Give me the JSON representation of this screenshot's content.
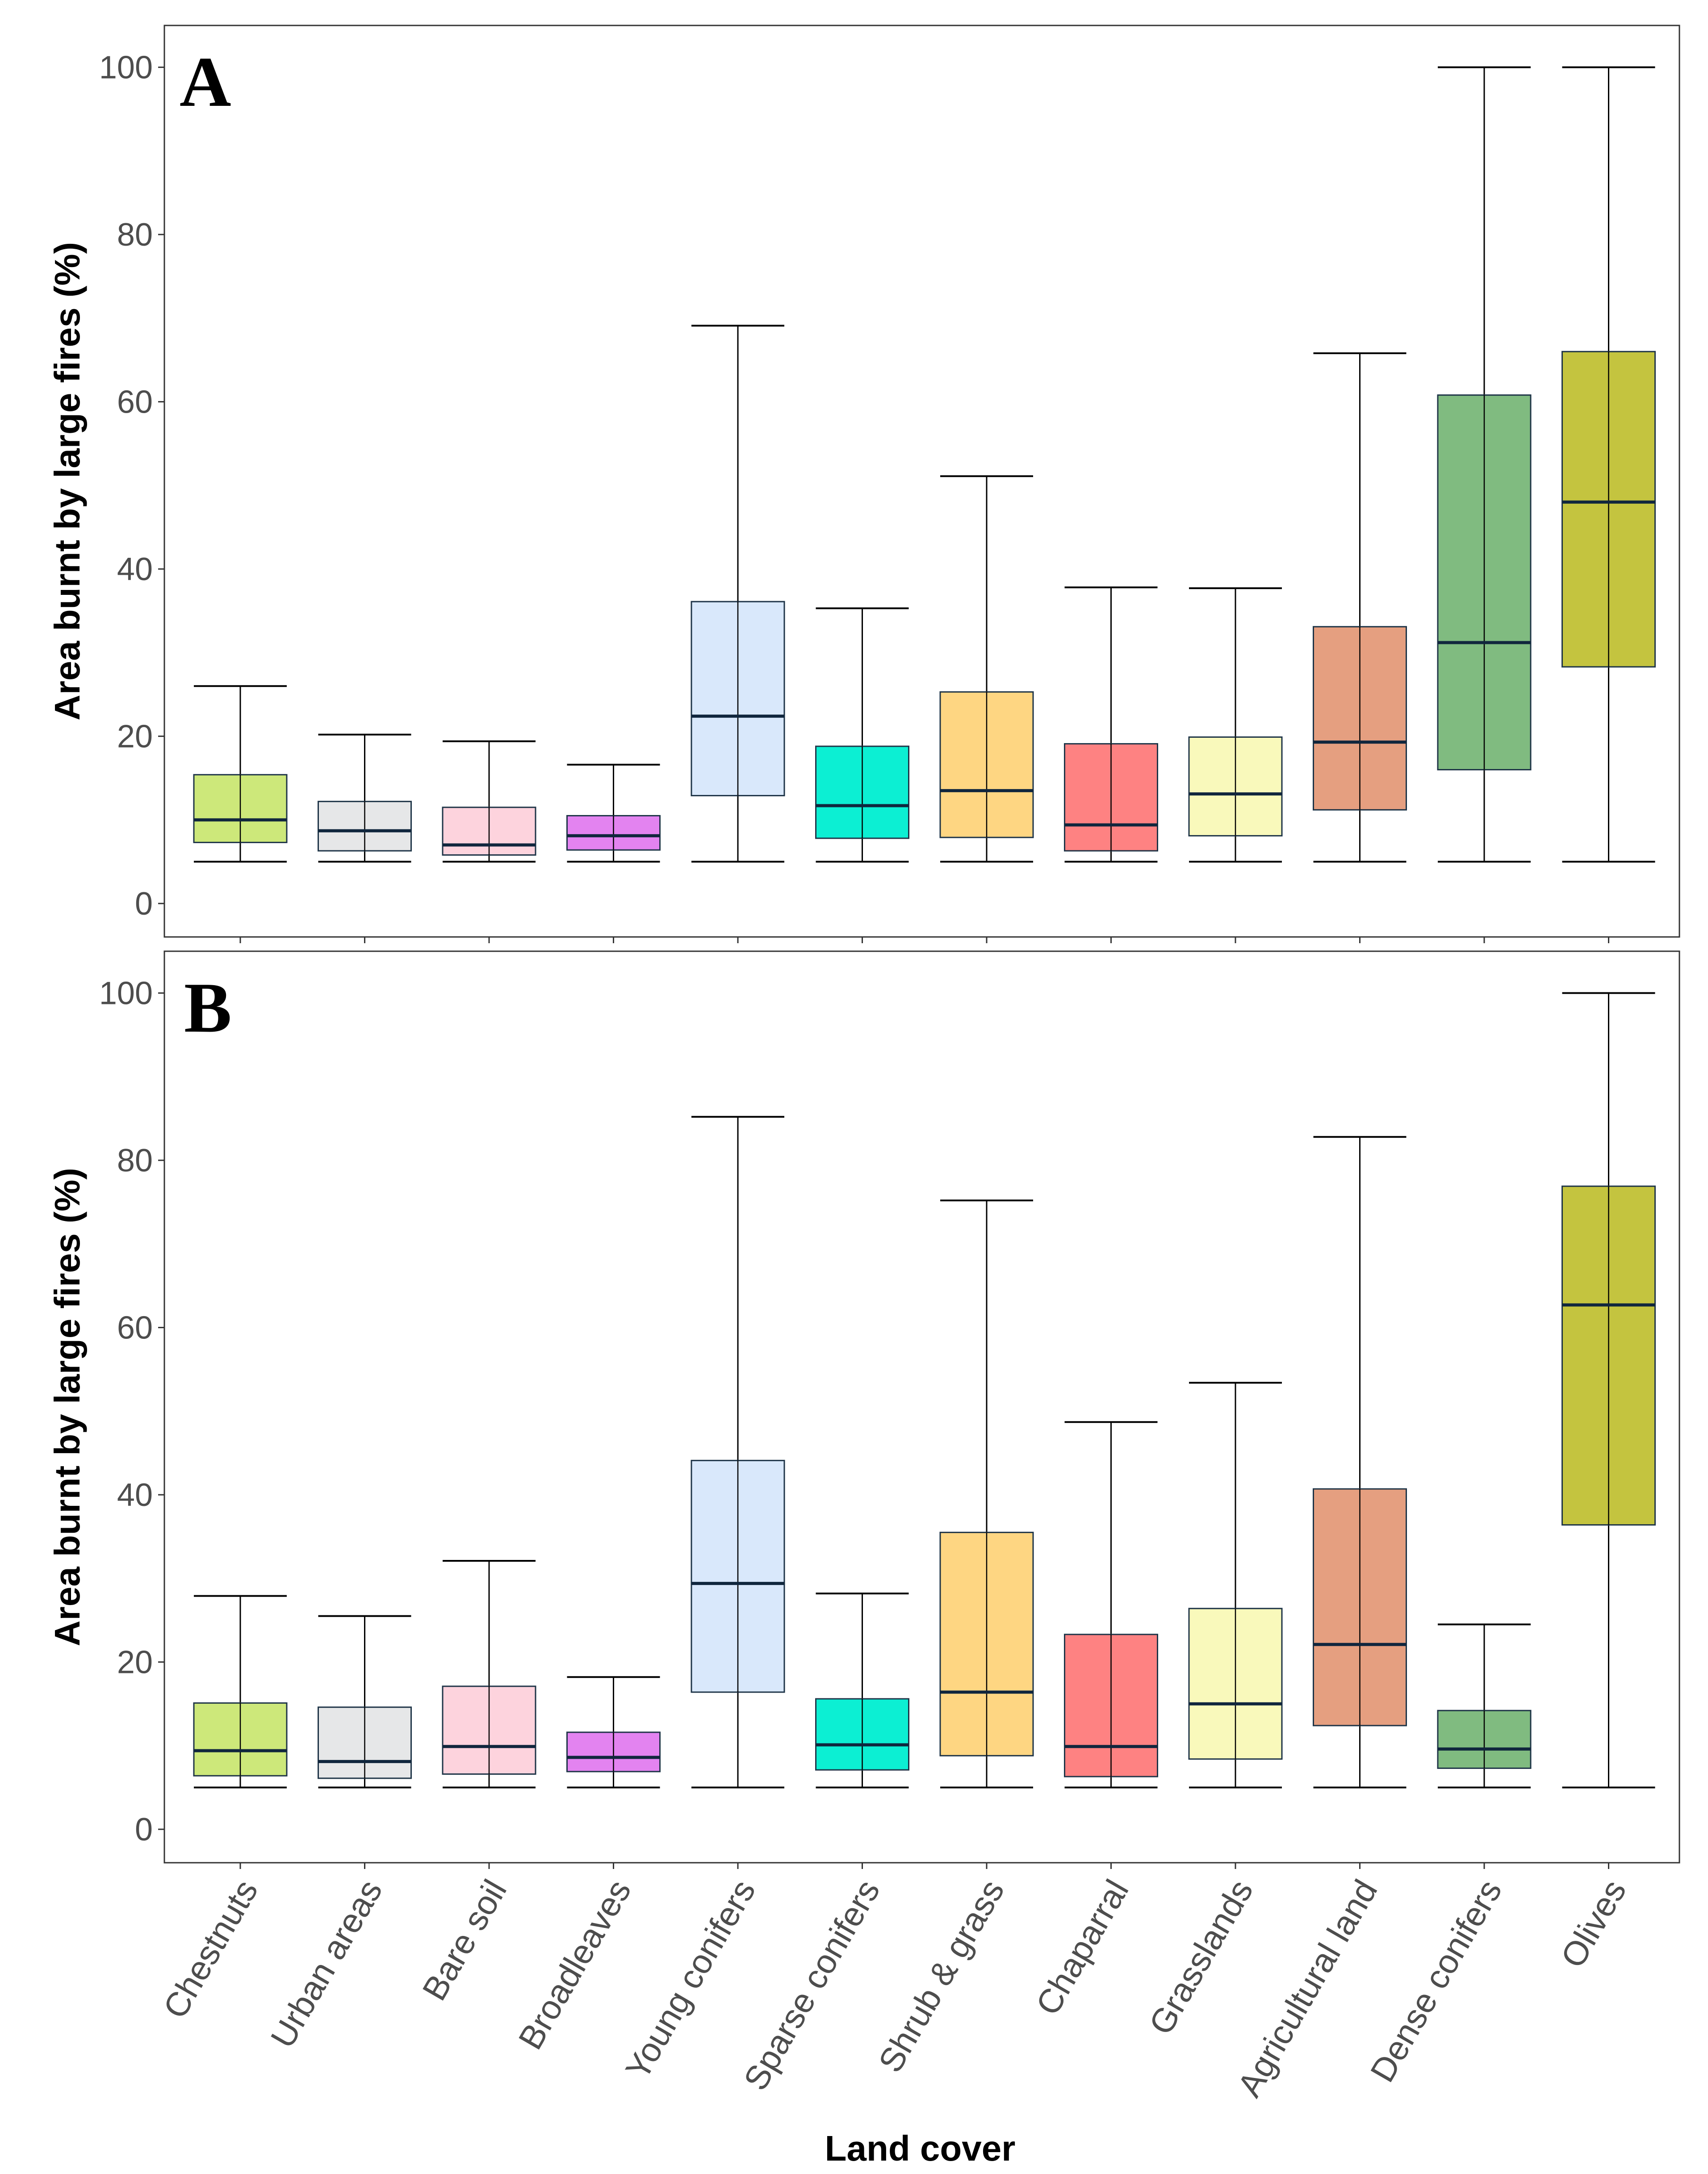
{
  "chart_data": [
    {
      "type": "boxplot",
      "panel_label": "A",
      "ylabel": "Area burnt by large fires (%)",
      "xlabel": "Land cover",
      "ylim": [
        -4,
        105
      ],
      "yticks": [
        0,
        20,
        40,
        60,
        80,
        100
      ],
      "grid": false,
      "categories": [
        "Chestnuts",
        "Urban areas",
        "Bare soil",
        "Broadleaves",
        "Young conifers",
        "Sparse conifers",
        "Shrub & grass",
        "Chaparral",
        "Grasslands",
        "Agricultural land",
        "Dense conifers",
        "Olives"
      ],
      "colors": [
        "#cde87a",
        "#e6e7e8",
        "#fdd3dd",
        "#e383f0",
        "#d9e8fb",
        "#0cefd3",
        "#fed682",
        "#fe8282",
        "#f9f9bb",
        "#e59f80",
        "#80bb80",
        "#c4c43f"
      ],
      "boxes": [
        {
          "whisker_low": 5,
          "q1": 7.3,
          "median": 10,
          "q3": 15.4,
          "whisker_high": 26
        },
        {
          "whisker_low": 5,
          "q1": 6.3,
          "median": 8.7,
          "q3": 12.2,
          "whisker_high": 20.2
        },
        {
          "whisker_low": 5,
          "q1": 5.8,
          "median": 7,
          "q3": 11.5,
          "whisker_high": 19.4
        },
        {
          "whisker_low": 5,
          "q1": 6.4,
          "median": 8.1,
          "q3": 10.5,
          "whisker_high": 16.6
        },
        {
          "whisker_low": 5,
          "q1": 12.9,
          "median": 22.4,
          "q3": 36.1,
          "whisker_high": 69.1
        },
        {
          "whisker_low": 5,
          "q1": 7.8,
          "median": 11.7,
          "q3": 18.8,
          "whisker_high": 35.3
        },
        {
          "whisker_low": 5,
          "q1": 7.9,
          "median": 13.5,
          "q3": 25.3,
          "whisker_high": 51.1
        },
        {
          "whisker_low": 5,
          "q1": 6.3,
          "median": 9.4,
          "q3": 19.1,
          "whisker_high": 37.8
        },
        {
          "whisker_low": 5,
          "q1": 8.1,
          "median": 13.1,
          "q3": 19.9,
          "whisker_high": 37.7
        },
        {
          "whisker_low": 5,
          "q1": 11.2,
          "median": 19.3,
          "q3": 33.1,
          "whisker_high": 65.8
        },
        {
          "whisker_low": 5,
          "q1": 16,
          "median": 31.2,
          "q3": 60.8,
          "whisker_high": 100
        },
        {
          "whisker_low": 5,
          "q1": 28.3,
          "median": 48,
          "q3": 66,
          "whisker_high": 100
        }
      ]
    },
    {
      "type": "boxplot",
      "panel_label": "B",
      "ylabel": "Area burnt by large fires (%)",
      "xlabel": "Land cover",
      "ylim": [
        -4,
        105
      ],
      "yticks": [
        0,
        20,
        40,
        60,
        80,
        100
      ],
      "grid": false,
      "categories": [
        "Chestnuts",
        "Urban areas",
        "Bare soil",
        "Broadleaves",
        "Young conifers",
        "Sparse conifers",
        "Shrub & grass",
        "Chaparral",
        "Grasslands",
        "Agricultural land",
        "Dense conifers",
        "Olives"
      ],
      "colors": [
        "#cde87a",
        "#e6e7e8",
        "#fdd3dd",
        "#e383f0",
        "#d9e8fb",
        "#0cefd3",
        "#fed682",
        "#fe8282",
        "#f9f9bb",
        "#e59f80",
        "#80bb80",
        "#c4c43f"
      ],
      "boxes": [
        {
          "whisker_low": 5,
          "q1": 6.4,
          "median": 9.4,
          "q3": 15.1,
          "whisker_high": 27.9
        },
        {
          "whisker_low": 5,
          "q1": 6.1,
          "median": 8.1,
          "q3": 14.6,
          "whisker_high": 25.5
        },
        {
          "whisker_low": 5,
          "q1": 6.6,
          "median": 9.9,
          "q3": 17.1,
          "whisker_high": 32.1
        },
        {
          "whisker_low": 5,
          "q1": 6.9,
          "median": 8.6,
          "q3": 11.6,
          "whisker_high": 18.2
        },
        {
          "whisker_low": 5,
          "q1": 16.4,
          "median": 29.4,
          "q3": 44.1,
          "whisker_high": 85.2
        },
        {
          "whisker_low": 5,
          "q1": 7.1,
          "median": 10.1,
          "q3": 15.6,
          "whisker_high": 28.2
        },
        {
          "whisker_low": 5,
          "q1": 8.8,
          "median": 16.4,
          "q3": 35.5,
          "whisker_high": 75.2
        },
        {
          "whisker_low": 5,
          "q1": 6.3,
          "median": 9.9,
          "q3": 23.3,
          "whisker_high": 48.7
        },
        {
          "whisker_low": 5,
          "q1": 8.4,
          "median": 15,
          "q3": 26.4,
          "whisker_high": 53.4
        },
        {
          "whisker_low": 5,
          "q1": 12.4,
          "median": 22.1,
          "q3": 40.7,
          "whisker_high": 82.8
        },
        {
          "whisker_low": 5,
          "q1": 7.3,
          "median": 9.6,
          "q3": 14.2,
          "whisker_high": 24.5
        },
        {
          "whisker_low": 5,
          "q1": 36.4,
          "median": 62.7,
          "q3": 76.9,
          "whisker_high": 100
        }
      ]
    }
  ]
}
